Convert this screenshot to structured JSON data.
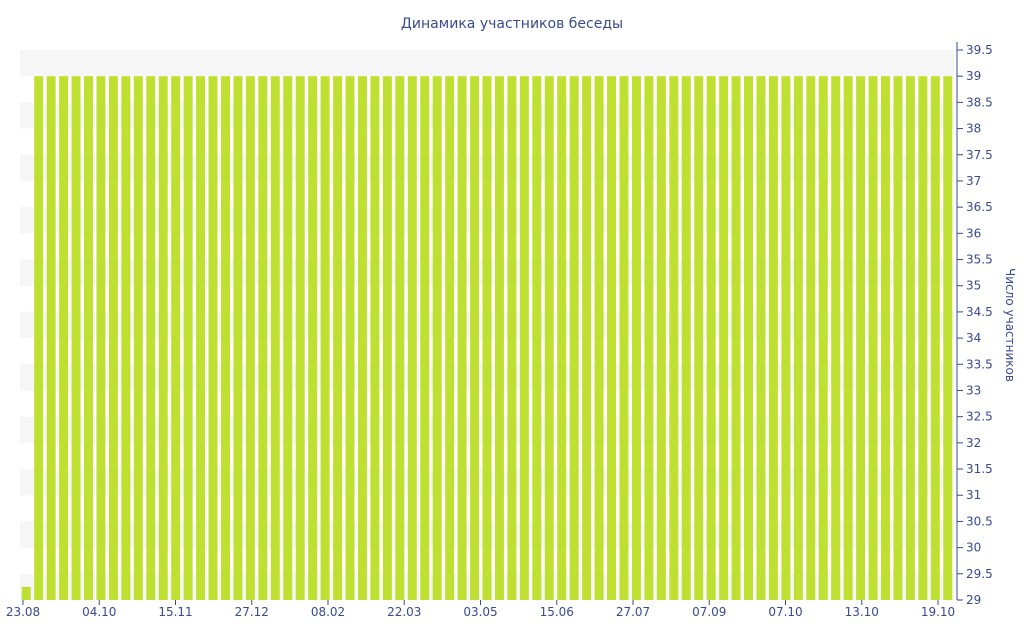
{
  "chart_data": {
    "type": "bar",
    "title": "Динамика участников беседы",
    "ylabel": "Число участников",
    "xlabel": "",
    "ylim": [
      29,
      39.5
    ],
    "y_ticks": [
      29,
      29.5,
      30,
      30.5,
      31,
      31.5,
      32,
      32.5,
      33,
      33.5,
      34,
      34.5,
      35,
      35.5,
      36,
      36.5,
      37,
      37.5,
      38,
      38.5,
      39,
      39.5
    ],
    "y_axis_side": "right",
    "x_tick_labels": [
      "23.08",
      "04.10",
      "15.11",
      "27.12",
      "08.02",
      "22.03",
      "03.05",
      "15.06",
      "27.07",
      "07.09",
      "07.10",
      "13.10",
      "19.10"
    ],
    "bar_count": 75,
    "values": [
      29.25,
      39,
      39,
      39,
      39,
      39,
      39,
      39,
      39,
      39,
      39,
      39,
      39,
      39,
      39,
      39,
      39,
      39,
      39,
      39,
      39,
      39,
      39,
      39,
      39,
      39,
      39,
      39,
      39,
      39,
      39,
      39,
      39,
      39,
      39,
      39,
      39,
      39,
      39,
      39,
      39,
      39,
      39,
      39,
      39,
      39,
      39,
      39,
      39,
      39,
      39,
      39,
      39,
      39,
      39,
      39,
      39,
      39,
      39,
      39,
      39,
      39,
      39,
      39,
      39,
      39,
      39,
      39,
      39,
      39,
      39,
      39,
      39,
      39,
      39
    ],
    "grid": "horizontal bands",
    "colors": {
      "bar": "#bfe030",
      "axis": "#3a4a8f",
      "text": "#3a4a8f",
      "band": "#f6f6f6"
    }
  }
}
